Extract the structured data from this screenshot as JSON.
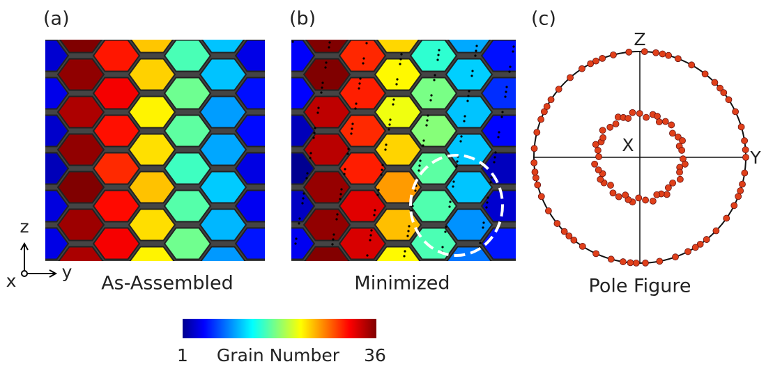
{
  "panels": [
    {
      "label": "(a)",
      "caption": "As-Assembled"
    },
    {
      "label": "(b)",
      "caption": "Minimized"
    },
    {
      "label": "(c)",
      "caption": "Pole Figure"
    }
  ],
  "triad": {
    "up": "z",
    "right": "y",
    "out": "x"
  },
  "pole_axes": {
    "top": "Z",
    "right": "Y",
    "center": "X"
  },
  "colorbar": {
    "min": 1,
    "title": "Grain Number",
    "max": 36
  }
}
